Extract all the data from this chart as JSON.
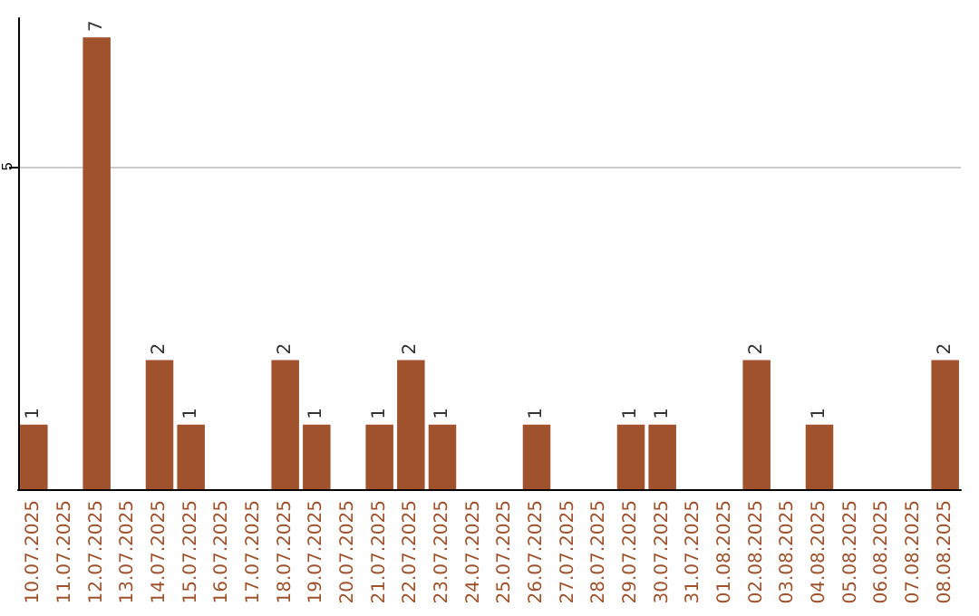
{
  "chart_data": {
    "type": "bar",
    "categories": [
      "10.07.2025",
      "11.07.2025",
      "12.07.2025",
      "13.07.2025",
      "14.07.2025",
      "15.07.2025",
      "16.07.2025",
      "17.07.2025",
      "18.07.2025",
      "19.07.2025",
      "20.07.2025",
      "21.07.2025",
      "22.07.2025",
      "23.07.2025",
      "24.07.2025",
      "25.07.2025",
      "26.07.2025",
      "27.07.2025",
      "28.07.2025",
      "29.07.2025",
      "30.07.2025",
      "31.07.2025",
      "01.08.2025",
      "02.08.2025",
      "03.08.2025",
      "04.08.2025",
      "05.08.2025",
      "06.08.2025",
      "07.08.2025",
      "08.08.2025"
    ],
    "values": [
      1,
      0,
      7,
      0,
      2,
      1,
      0,
      0,
      2,
      1,
      0,
      1,
      2,
      1,
      0,
      0,
      1,
      0,
      0,
      1,
      1,
      0,
      0,
      2,
      0,
      1,
      0,
      0,
      0,
      2
    ],
    "value_labels": [
      "1",
      null,
      "7",
      null,
      "2",
      "1",
      null,
      null,
      "2",
      "1",
      null,
      "1",
      "2",
      "1",
      null,
      null,
      "1",
      null,
      null,
      "1",
      "1",
      null,
      null,
      "2",
      null,
      "1",
      null,
      null,
      null,
      "2"
    ],
    "color": "#a0522d",
    "ylim": [
      0,
      7.3
    ],
    "yticks": [
      5
    ],
    "grid": "y"
  }
}
